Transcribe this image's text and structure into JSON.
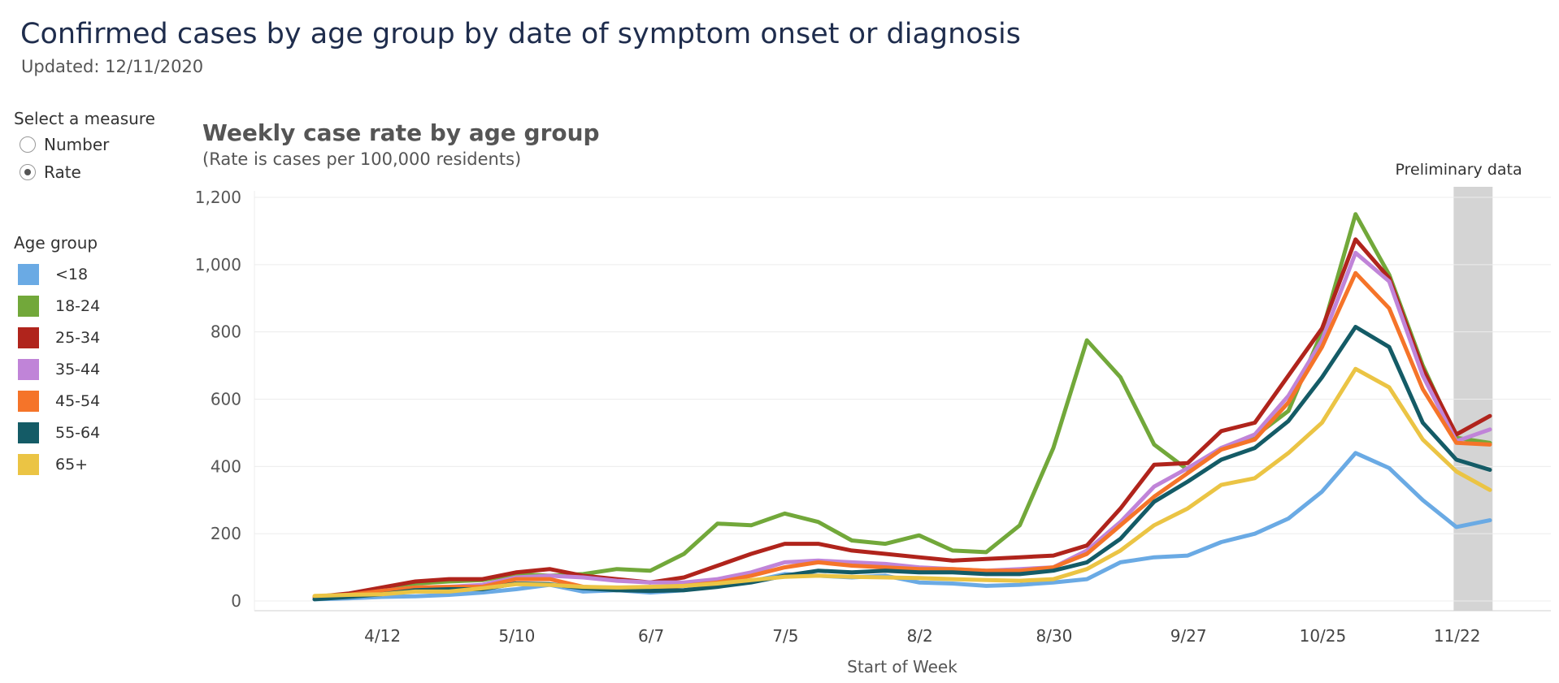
{
  "page": {
    "title": "Confirmed cases by age group by date of symptom onset or diagnosis",
    "updated": "Updated: 12/11/2020"
  },
  "measure": {
    "label": "Select a measure",
    "options": [
      {
        "label": "Number",
        "selected": false
      },
      {
        "label": "Rate",
        "selected": true
      }
    ]
  },
  "age_group": {
    "label": "Age group"
  },
  "chart_data": {
    "type": "line",
    "title": "Weekly case rate by age group",
    "subtitle": "(Rate is cases per 100,000 residents)",
    "xlabel": "Start of Week",
    "ylabel": "",
    "ylim": [
      0,
      1200
    ],
    "yticks": [
      0,
      200,
      400,
      600,
      800,
      1000,
      1200
    ],
    "ytick_labels": [
      "0",
      "200",
      "400",
      "600",
      "800",
      "1,000",
      "1,200"
    ],
    "xtick_labels": [
      "4/12",
      "5/10",
      "6/7",
      "7/5",
      "8/2",
      "8/30",
      "9/27",
      "10/25",
      "11/22"
    ],
    "xtick_indices": [
      2,
      6,
      10,
      14,
      18,
      22,
      26,
      30,
      34
    ],
    "x": [
      "3/29",
      "4/5",
      "4/12",
      "4/19",
      "4/26",
      "5/3",
      "5/10",
      "5/17",
      "5/24",
      "5/31",
      "6/7",
      "6/14",
      "6/21",
      "6/28",
      "7/5",
      "7/12",
      "7/19",
      "7/26",
      "8/2",
      "8/9",
      "8/16",
      "8/23",
      "8/30",
      "9/6",
      "9/13",
      "9/20",
      "9/27",
      "10/4",
      "10/11",
      "10/18",
      "10/25",
      "11/1",
      "11/8",
      "11/15",
      "11/22",
      "11/29"
    ],
    "preliminary": {
      "label": "Preliminary data",
      "from_index": 34,
      "to_index": 35
    },
    "grid": true,
    "legend": "left",
    "series": [
      {
        "name": "<18",
        "color": "#6aaae4",
        "values": [
          5,
          8,
          12,
          14,
          18,
          25,
          35,
          48,
          28,
          32,
          25,
          32,
          45,
          58,
          80,
          75,
          70,
          75,
          55,
          52,
          45,
          48,
          55,
          65,
          115,
          130,
          135,
          175,
          200,
          245,
          325,
          440,
          395,
          300,
          220,
          240
        ]
      },
      {
        "name": "18-24",
        "color": "#72a83a",
        "values": [
          10,
          20,
          35,
          52,
          58,
          62,
          80,
          75,
          80,
          95,
          90,
          140,
          230,
          225,
          260,
          235,
          180,
          170,
          195,
          150,
          145,
          225,
          455,
          775,
          665,
          465,
          390,
          455,
          490,
          565,
          800,
          1150,
          970,
          700,
          485,
          470
        ]
      },
      {
        "name": "25-34",
        "color": "#b0241c",
        "values": [
          12,
          22,
          40,
          58,
          65,
          65,
          85,
          95,
          75,
          65,
          55,
          70,
          105,
          140,
          170,
          170,
          150,
          140,
          130,
          120,
          125,
          130,
          135,
          165,
          275,
          405,
          410,
          505,
          530,
          670,
          810,
          1075,
          960,
          690,
          495,
          550
        ]
      },
      {
        "name": "35-44",
        "color": "#c084d8",
        "values": [
          8,
          15,
          30,
          40,
          42,
          48,
          70,
          75,
          70,
          60,
          55,
          55,
          65,
          85,
          115,
          120,
          115,
          110,
          100,
          95,
          90,
          95,
          100,
          150,
          235,
          340,
          395,
          455,
          495,
          610,
          775,
          1035,
          950,
          670,
          475,
          510
        ]
      },
      {
        "name": "45-54",
        "color": "#f57429",
        "values": [
          12,
          18,
          30,
          40,
          42,
          42,
          65,
          65,
          42,
          38,
          38,
          45,
          55,
          75,
          100,
          115,
          105,
          100,
          95,
          95,
          90,
          90,
          100,
          140,
          225,
          310,
          380,
          450,
          480,
          590,
          755,
          975,
          870,
          630,
          470,
          465
        ]
      },
      {
        "name": "55-64",
        "color": "#145b66",
        "values": [
          5,
          12,
          20,
          32,
          35,
          35,
          52,
          50,
          38,
          32,
          30,
          32,
          42,
          55,
          75,
          90,
          85,
          90,
          85,
          85,
          80,
          80,
          90,
          115,
          185,
          295,
          355,
          420,
          455,
          535,
          665,
          815,
          755,
          530,
          420,
          390
        ]
      },
      {
        "name": "65+",
        "color": "#ebc444",
        "values": [
          15,
          18,
          20,
          28,
          28,
          38,
          50,
          48,
          42,
          40,
          42,
          45,
          52,
          62,
          72,
          75,
          72,
          70,
          68,
          65,
          62,
          60,
          65,
          95,
          150,
          225,
          275,
          345,
          365,
          440,
          530,
          690,
          635,
          480,
          385,
          330
        ]
      }
    ]
  }
}
